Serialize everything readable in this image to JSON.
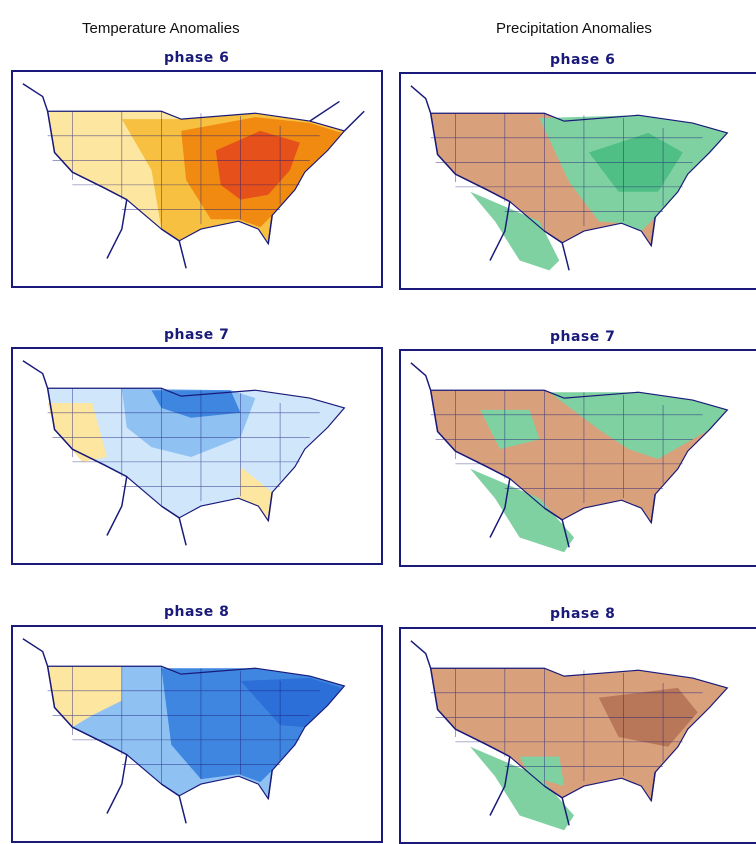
{
  "columns": {
    "temperature": "Temperature Anomalies",
    "precipitation": "Precipitation Anomalies"
  },
  "rows": [
    {
      "phase": "phase 6",
      "temperature": "warm",
      "precipitation": "mixed-wet-east"
    },
    {
      "phase": "phase 7",
      "temperature": "cool",
      "precipitation": "mixed"
    },
    {
      "phase": "phase 8",
      "temperature": "cold",
      "precipitation": "dry"
    }
  ],
  "colors": {
    "frame": "#1a1a7a",
    "warm_light": "#fde7a0",
    "warm_mid": "#f8c040",
    "warm_strong": "#f08a10",
    "warm_peak": "#e6501a",
    "cool_light": "#cfe6fb",
    "cool_mid": "#8fc2f2",
    "cool_strong": "#3f86e0",
    "cool_peak": "#2c6fd8",
    "dry": "#d9a07c",
    "dry_dark": "#b9775a",
    "wet": "#7fd1a2",
    "wet_dark": "#4fbf85"
  }
}
